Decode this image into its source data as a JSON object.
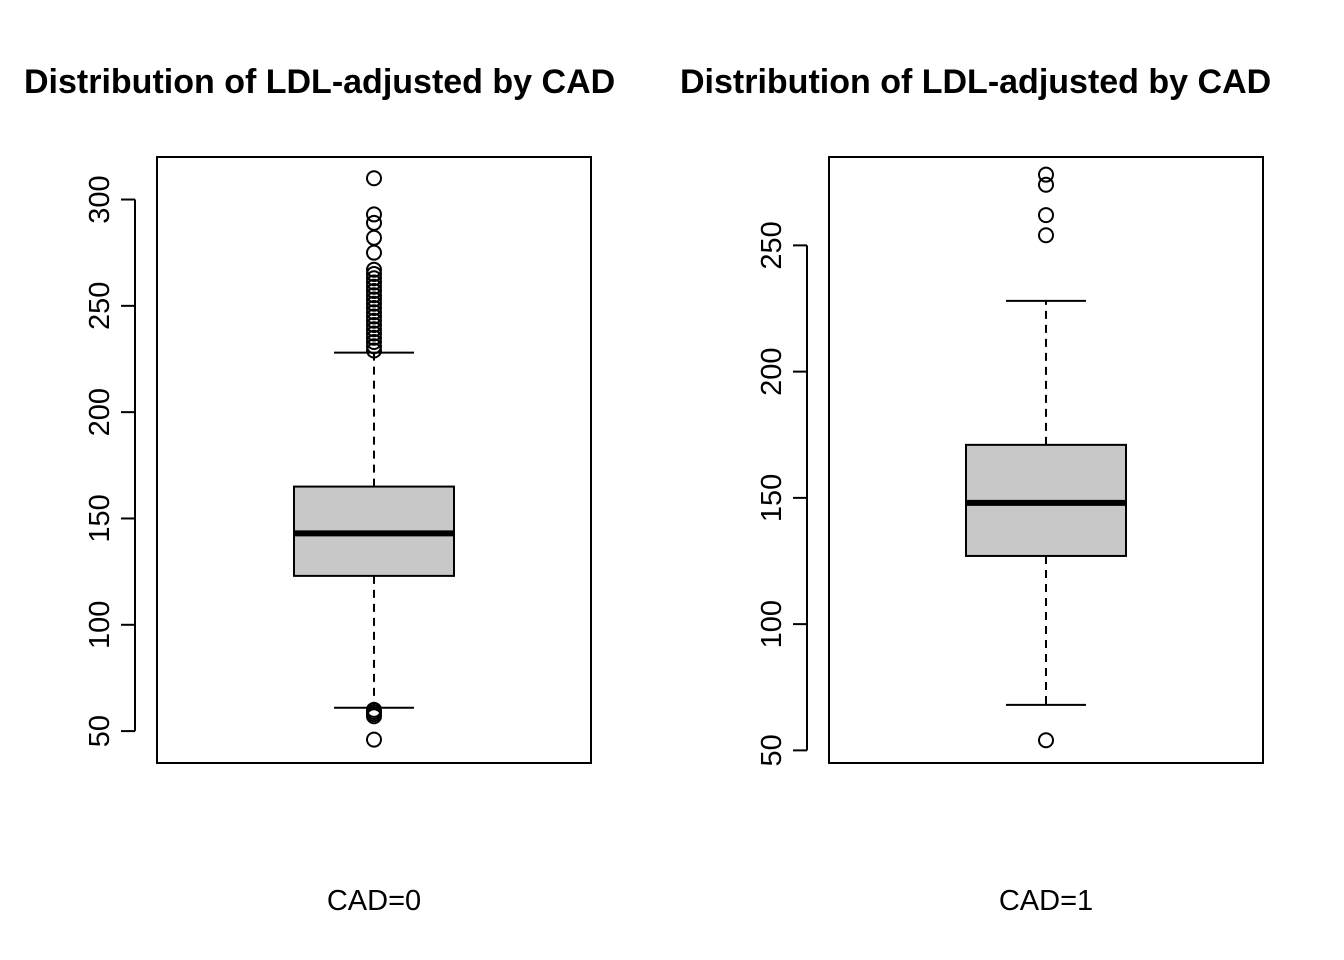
{
  "chart_data": [
    {
      "type": "boxplot",
      "title": "Distribution of LDL-adjusted by CAD",
      "xlabel": "CAD=0",
      "ylabel": "",
      "ylim": [
        35,
        320
      ],
      "yticks": [
        50,
        100,
        150,
        200,
        250,
        300
      ],
      "colors": {
        "box_fill": "#c8c8c8",
        "line": "#000000"
      },
      "grid": false,
      "box": {
        "whisker_low": 61,
        "q1": 123,
        "median": 143,
        "q3": 165,
        "whisker_high": 228
      },
      "outliers": [
        46,
        57,
        58,
        59,
        60,
        229,
        231,
        233,
        235,
        237,
        239,
        241,
        243,
        245,
        247,
        249,
        251,
        253,
        255,
        257,
        259,
        261,
        263,
        265,
        267,
        275,
        282,
        289,
        293,
        310
      ]
    },
    {
      "type": "boxplot",
      "title": "Distribution of LDL-adjusted by CAD",
      "xlabel": "CAD=1",
      "ylabel": "",
      "ylim": [
        45,
        285
      ],
      "yticks": [
        50,
        100,
        150,
        200,
        250
      ],
      "colors": {
        "box_fill": "#c8c8c8",
        "line": "#000000"
      },
      "grid": false,
      "box": {
        "whisker_low": 68,
        "q1": 127,
        "median": 148,
        "q3": 171,
        "whisker_high": 228
      },
      "outliers": [
        54,
        254,
        262,
        274,
        278
      ]
    }
  ]
}
